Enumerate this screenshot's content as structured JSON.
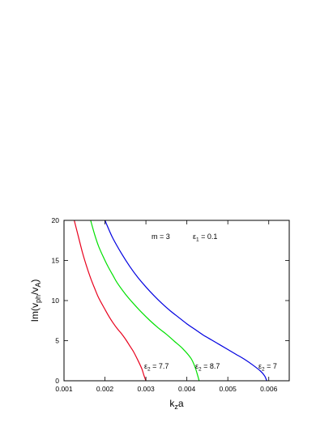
{
  "chart_data": {
    "type": "line",
    "xlabel_main": "k",
    "xlabel_sub": "z",
    "xlabel_rest": "a",
    "ylabel_parts": {
      "pre": "Im(v",
      "sub1": "ph",
      "mid": "/v",
      "sub2": "A",
      "post": ")"
    },
    "xlim": [
      0.001,
      0.0065
    ],
    "ylim": [
      0,
      20
    ],
    "xticks": [
      0.001,
      0.002,
      0.003,
      0.004,
      0.005,
      0.006
    ],
    "xtick_labels": [
      "0.001",
      "0.002",
      "0.003",
      "0.004",
      "0.005",
      "0.006"
    ],
    "yticks": [
      0,
      5,
      10,
      15,
      20
    ],
    "ytick_labels": [
      "0",
      "5",
      "10",
      "15",
      "20"
    ],
    "grid": false,
    "annotations": {
      "m_label": "m = 3",
      "eps1": {
        "symbol": "ε",
        "sub": "1",
        "rest": " = 0.1"
      }
    },
    "series": [
      {
        "color": "#e8001c",
        "label": {
          "symbol": "ε",
          "sub": "2",
          "rest": " = 7.7"
        },
        "x": [
          0.00125,
          0.00135,
          0.00145,
          0.00155,
          0.00165,
          0.00175,
          0.00185,
          0.002,
          0.0021,
          0.0022,
          0.0023,
          0.0024,
          0.0025,
          0.0026,
          0.0027,
          0.0028,
          0.0029,
          0.00295,
          0.003
        ],
        "y": [
          20,
          18,
          16,
          14.3,
          12.8,
          11.5,
          10.3,
          8.9,
          8.0,
          7.2,
          6.5,
          5.9,
          5.2,
          4.4,
          3.6,
          2.6,
          1.5,
          0.7,
          0
        ]
      },
      {
        "color": "#00e000",
        "label": {
          "symbol": "ε",
          "sub": "2",
          "rest": " = 8.7"
        },
        "x": [
          0.00165,
          0.00175,
          0.00185,
          0.002,
          0.0021,
          0.0022,
          0.0023,
          0.0025,
          0.0027,
          0.0029,
          0.0031,
          0.0033,
          0.0035,
          0.0037,
          0.0039,
          0.0041,
          0.0042,
          0.00425,
          0.0043
        ],
        "y": [
          20,
          18.2,
          16.7,
          15.0,
          14.0,
          13.1,
          12.2,
          10.8,
          9.6,
          8.5,
          7.5,
          6.6,
          5.8,
          4.9,
          4.0,
          2.8,
          1.7,
          0.9,
          0
        ]
      },
      {
        "color": "#0000e0",
        "label": {
          "symbol": "ε",
          "sub": "2",
          "rest": " = 7"
        },
        "x": [
          0.002,
          0.0021,
          0.0022,
          0.0024,
          0.0026,
          0.0028,
          0.003,
          0.0032,
          0.0034,
          0.0036,
          0.0038,
          0.004,
          0.0042,
          0.0044,
          0.0046,
          0.0048,
          0.005,
          0.0052,
          0.0054,
          0.0056,
          0.0058,
          0.0059,
          0.00595
        ],
        "y": [
          20,
          18.8,
          17.7,
          15.9,
          14.3,
          12.9,
          11.7,
          10.6,
          9.6,
          8.7,
          7.9,
          7.1,
          6.4,
          5.7,
          5.1,
          4.5,
          3.9,
          3.3,
          2.7,
          2.0,
          1.2,
          0.6,
          0
        ]
      }
    ]
  }
}
